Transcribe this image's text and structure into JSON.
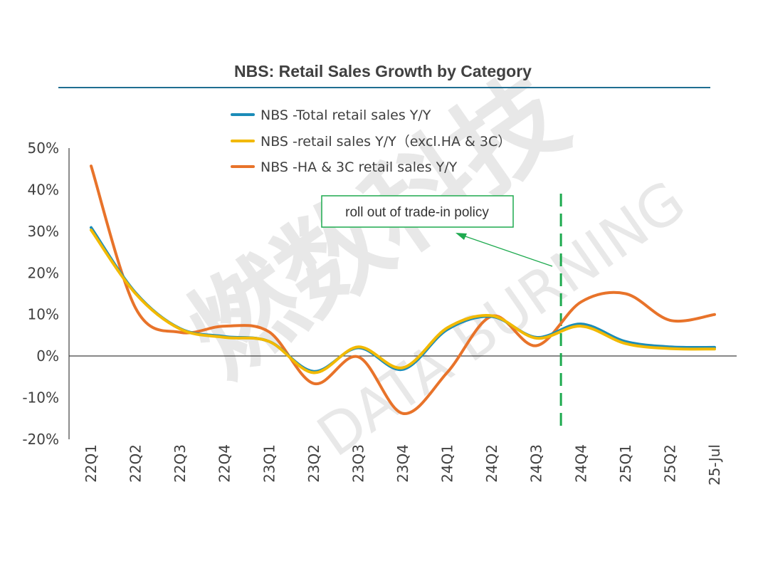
{
  "watermark": {
    "brand_cn": "燃数科技",
    "brand_en": "DATA BURNING"
  },
  "chart_data": {
    "type": "line",
    "title": "NBS: Retail Sales Growth by Category",
    "categories": [
      "22Q1",
      "22Q2",
      "22Q3",
      "22Q4",
      "23Q1",
      "23Q2",
      "23Q3",
      "23Q4",
      "24Q1",
      "24Q2",
      "24Q3",
      "24Q4",
      "25Q1",
      "25Q2",
      "25-Jul"
    ],
    "ylim": [
      -20,
      50
    ],
    "yticks": [
      -20,
      -10,
      0,
      10,
      20,
      30,
      40,
      50
    ],
    "ytick_format": "%",
    "grid": false,
    "legend_position": "top",
    "series": [
      {
        "name": "NBS -Total retail sales Y/Y",
        "color": "#1B8CB8",
        "values": [
          30.9,
          15.2,
          6.6,
          4.7,
          3.5,
          -3.7,
          2.0,
          -3.2,
          6.4,
          9.5,
          4.5,
          7.7,
          3.5,
          2.2,
          2.1
        ]
      },
      {
        "name": "NBS -retail sales Y/Y（excl.HA & 3C）",
        "color": "#F2B900",
        "values": [
          30.3,
          15.0,
          6.5,
          4.5,
          3.5,
          -4.0,
          2.2,
          -2.8,
          6.8,
          9.7,
          4.3,
          7.2,
          3.0,
          1.8,
          1.7
        ]
      },
      {
        "name": "NBS -HA & 3C retail sales Y/Y",
        "color": "#E8732A",
        "values": [
          45.7,
          11.5,
          5.7,
          7.2,
          5.8,
          -6.6,
          -0.2,
          -13.8,
          -3.9,
          9.6,
          2.5,
          13.0,
          15.0,
          8.6,
          10.0
        ]
      }
    ],
    "annotations": [
      {
        "text": "roll out of trade-in policy",
        "color": "#1EAA4F"
      }
    ],
    "policy_line_position_category": 10.55
  }
}
